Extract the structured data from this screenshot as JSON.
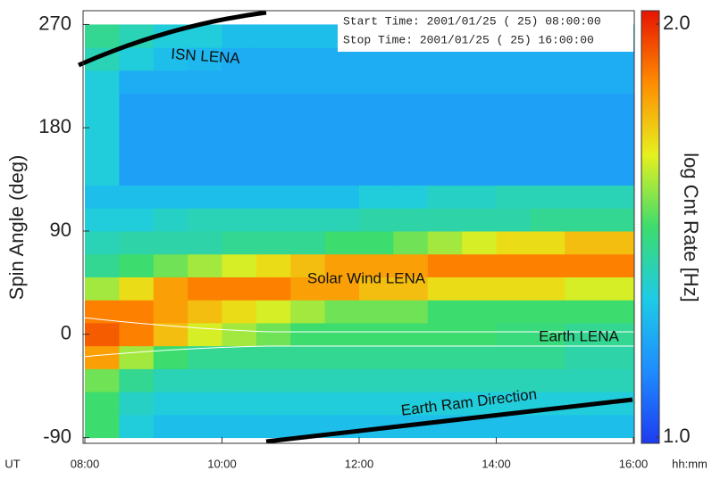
{
  "chart_data": {
    "type": "heatmap",
    "info_lines": [
      "Start Time: 2001/01/25  ( 25)  08:00:00",
      "Stop Time: 2001/01/25  ( 25)  16:00:00"
    ],
    "y_label": "Spin Angle (deg)",
    "colorbar_label": "log Cnt Rate [Hz]",
    "x_unit_left": "UT",
    "x_unit_right": "hh:mm",
    "annotations": [
      "ISN LENA",
      "Solar Wind LENA",
      "Earth LENA",
      "Earth Ram Direction"
    ],
    "xlim": [
      8,
      16
    ],
    "xticks": [
      {
        "value": 8,
        "label": "08:00"
      },
      {
        "value": 10,
        "label": "10:00"
      },
      {
        "value": 12,
        "label": "12:00"
      },
      {
        "value": 14,
        "label": "14:00"
      },
      {
        "value": 16,
        "label": "16:00"
      }
    ],
    "ylim": [
      -95,
      282
    ],
    "yticks": [
      -90,
      0,
      90,
      180,
      270
    ],
    "zlim": [
      1,
      2
    ],
    "zticks": [
      {
        "value": 1,
        "label": "1.0"
      },
      {
        "value": 2,
        "label": "2.0"
      }
    ],
    "colorscale": [
      "#1e3cf0",
      "#1e8cff",
      "#1ecbe6",
      "#3cdc6e",
      "#e6f01e",
      "#ff8c00",
      "#e61400"
    ],
    "x_bins": [
      8,
      8.5,
      9,
      9.5,
      10,
      10.5,
      11,
      11.5,
      12,
      12.5,
      13,
      13.5,
      14,
      14.5,
      15,
      15.5,
      16
    ],
    "y_bins": [
      -90,
      -70,
      -50,
      -30,
      -10,
      10,
      30,
      50,
      70,
      90,
      110,
      130,
      150,
      170,
      190,
      210,
      230,
      250,
      270
    ],
    "z": [
      [
        1.5,
        1.35,
        1.3,
        1.3,
        1.3,
        1.3,
        1.3,
        1.3,
        1.3,
        1.3,
        1.3,
        1.3,
        1.3,
        1.3,
        1.3,
        1.3
      ],
      [
        1.5,
        1.38,
        1.35,
        1.35,
        1.35,
        1.35,
        1.35,
        1.35,
        1.35,
        1.35,
        1.35,
        1.35,
        1.35,
        1.35,
        1.35,
        1.35
      ],
      [
        1.55,
        1.45,
        1.4,
        1.4,
        1.4,
        1.4,
        1.4,
        1.4,
        1.4,
        1.4,
        1.4,
        1.4,
        1.4,
        1.4,
        1.4,
        1.4
      ],
      [
        1.8,
        1.6,
        1.5,
        1.45,
        1.45,
        1.45,
        1.45,
        1.45,
        1.45,
        1.45,
        1.45,
        1.45,
        1.45,
        1.45,
        1.42,
        1.42
      ],
      [
        1.9,
        1.85,
        1.75,
        1.65,
        1.6,
        1.55,
        1.5,
        1.5,
        1.5,
        1.5,
        1.5,
        1.5,
        1.48,
        1.48,
        1.45,
        1.45
      ],
      [
        1.85,
        1.85,
        1.8,
        1.75,
        1.7,
        1.65,
        1.6,
        1.55,
        1.55,
        1.55,
        1.5,
        1.5,
        1.5,
        1.5,
        1.5,
        1.5
      ],
      [
        1.6,
        1.7,
        1.8,
        1.85,
        1.85,
        1.85,
        1.8,
        1.8,
        1.75,
        1.75,
        1.7,
        1.7,
        1.7,
        1.7,
        1.65,
        1.65
      ],
      [
        1.45,
        1.5,
        1.55,
        1.6,
        1.65,
        1.7,
        1.75,
        1.8,
        1.8,
        1.8,
        1.85,
        1.85,
        1.85,
        1.85,
        1.85,
        1.85
      ],
      [
        1.4,
        1.42,
        1.42,
        1.42,
        1.45,
        1.45,
        1.45,
        1.5,
        1.5,
        1.55,
        1.6,
        1.65,
        1.7,
        1.7,
        1.75,
        1.75
      ],
      [
        1.35,
        1.35,
        1.38,
        1.4,
        1.4,
        1.4,
        1.4,
        1.4,
        1.42,
        1.42,
        1.42,
        1.42,
        1.42,
        1.45,
        1.45,
        1.45
      ],
      [
        1.3,
        1.3,
        1.3,
        1.3,
        1.3,
        1.3,
        1.3,
        1.3,
        1.35,
        1.35,
        1.38,
        1.38,
        1.4,
        1.4,
        1.4,
        1.4
      ],
      [
        1.35,
        1.22,
        1.22,
        1.22,
        1.22,
        1.22,
        1.22,
        1.22,
        1.22,
        1.22,
        1.22,
        1.22,
        1.22,
        1.22,
        1.22,
        1.22
      ],
      [
        1.35,
        1.22,
        1.22,
        1.22,
        1.22,
        1.22,
        1.22,
        1.22,
        1.22,
        1.22,
        1.22,
        1.22,
        1.22,
        1.22,
        1.22,
        1.22
      ],
      [
        1.35,
        1.22,
        1.22,
        1.22,
        1.22,
        1.22,
        1.22,
        1.22,
        1.22,
        1.22,
        1.22,
        1.22,
        1.22,
        1.22,
        1.22,
        1.22
      ],
      [
        1.35,
        1.22,
        1.22,
        1.22,
        1.22,
        1.22,
        1.22,
        1.22,
        1.22,
        1.22,
        1.22,
        1.22,
        1.22,
        1.22,
        1.22,
        1.22
      ],
      [
        1.35,
        1.25,
        1.25,
        1.25,
        1.25,
        1.25,
        1.25,
        1.25,
        1.25,
        1.25,
        1.25,
        1.25,
        1.25,
        1.25,
        1.25,
        1.25
      ],
      [
        1.4,
        1.35,
        1.3,
        1.28,
        1.25,
        1.25,
        1.25,
        1.25,
        1.25,
        1.25,
        1.25,
        1.25,
        1.25,
        1.25,
        1.25,
        1.25
      ],
      [
        1.45,
        1.4,
        1.35,
        1.35,
        1.3,
        1.3,
        1.3,
        1.3,
        1.3,
        1.3,
        1.3,
        1.3,
        1.35,
        1.35,
        1.35,
        1.35
      ]
    ]
  }
}
